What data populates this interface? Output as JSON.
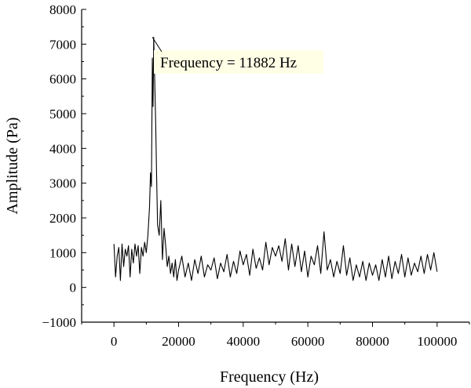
{
  "chart_data": {
    "type": "line",
    "xlabel": "Frequency (Hz)",
    "ylabel": "Amplitude (Pa)",
    "xlim": [
      -10000,
      110000
    ],
    "ylim": [
      -1000,
      8000
    ],
    "x_ticks": [
      0,
      20000,
      40000,
      60000,
      80000,
      100000
    ],
    "y_ticks": [
      -1000,
      0,
      1000,
      2000,
      3000,
      4000,
      5000,
      6000,
      7000,
      8000
    ],
    "grid": false,
    "annotation": {
      "text": "Frequency = 11882 Hz",
      "x": 11882,
      "y": 7200,
      "background": "#ffffe6"
    },
    "line_color": "#000000",
    "series": [
      {
        "x": [
          0,
          500,
          1000,
          1500,
          2000,
          2500,
          3000,
          3500,
          4000,
          4500,
          5000,
          5500,
          6000,
          6500,
          7000,
          7500,
          8000,
          8500,
          9000,
          9500,
          10000,
          10500,
          11000,
          11300,
          11600,
          11882,
          12100,
          12300,
          12600,
          12900,
          13200,
          13500,
          14000,
          14500,
          15000,
          15500,
          16000,
          16500,
          17000,
          17500,
          18000,
          18500,
          19000,
          19500,
          20000,
          21000,
          22000,
          23000,
          24000,
          25000,
          26000,
          27000,
          28000,
          29000,
          30000,
          31000,
          32000,
          33000,
          34000,
          35000,
          36000,
          37000,
          38000,
          39000,
          40000,
          41000,
          42000,
          43000,
          44000,
          45000,
          46000,
          47000,
          48000,
          49000,
          50000,
          51000,
          52000,
          53000,
          54000,
          55000,
          56000,
          57000,
          58000,
          59000,
          60000,
          61000,
          62000,
          63000,
          64000,
          65000,
          66000,
          67000,
          68000,
          69000,
          70000,
          71000,
          72000,
          73000,
          74000,
          75000,
          76000,
          77000,
          78000,
          79000,
          80000,
          81000,
          82000,
          83000,
          84000,
          85000,
          86000,
          87000,
          88000,
          89000,
          90000,
          91000,
          92000,
          93000,
          94000,
          95000,
          96000,
          97000,
          98000,
          99000,
          100000
        ],
        "y": [
          1250,
          300,
          900,
          1150,
          200,
          1250,
          600,
          1100,
          900,
          1200,
          300,
          1100,
          700,
          1250,
          900,
          1200,
          400,
          1150,
          900,
          1300,
          1000,
          1500,
          2300,
          3300,
          2900,
          6600,
          5200,
          7200,
          6000,
          4800,
          3200,
          1800,
          1500,
          2500,
          800,
          1700,
          1200,
          600,
          900,
          400,
          700,
          300,
          800,
          200,
          500,
          900,
          300,
          700,
          200,
          800,
          400,
          900,
          300,
          650,
          500,
          850,
          250,
          700,
          450,
          950,
          300,
          750,
          400,
          1050,
          650,
          950,
          350,
          1100,
          550,
          850,
          500,
          1300,
          650,
          1150,
          900,
          1200,
          750,
          1400,
          500,
          1250,
          600,
          1200,
          450,
          1050,
          300,
          900,
          650,
          1200,
          400,
          1600,
          500,
          800,
          300,
          750,
          400,
          1200,
          350,
          850,
          200,
          650,
          300,
          750,
          200,
          700,
          350,
          650,
          200,
          800,
          300,
          900,
          250,
          750,
          400,
          950,
          300,
          850,
          350,
          700,
          450,
          900,
          400,
          950,
          500,
          1000,
          450
        ]
      }
    ]
  }
}
